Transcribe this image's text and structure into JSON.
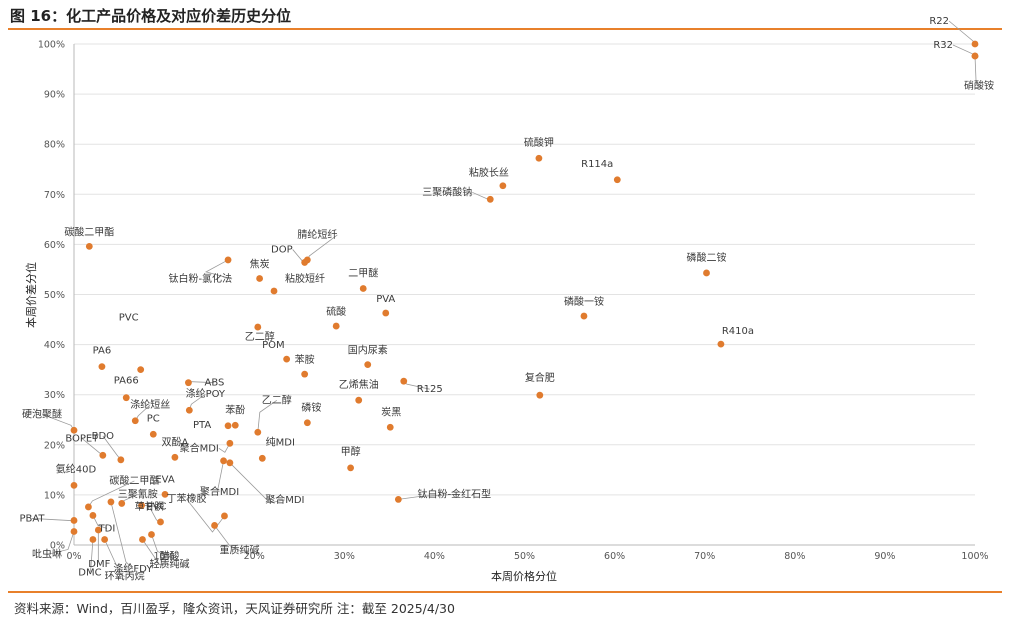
{
  "figure": {
    "title": "图 16：化工产品价格及对应价差历史分位",
    "source": "资料来源：Wind，百川盈孚，隆众资讯，天风证券研究所    注：截至 2025/4/30"
  },
  "colors": {
    "accent": "#e8802b",
    "point": "#e07b2e",
    "grid": "#e3e3e3",
    "axis": "#b9b9b9"
  },
  "chart_data": {
    "type": "scatter",
    "xlabel": "本周价格分位",
    "ylabel": "本周价差分位",
    "xlim": [
      0,
      100
    ],
    "ylim": [
      0,
      100
    ],
    "x_ticks": [
      "0%",
      "10%",
      "20%",
      "30%",
      "40%",
      "50%",
      "60%",
      "70%",
      "80%",
      "90%",
      "100%"
    ],
    "y_ticks": [
      "0%",
      "10%",
      "20%",
      "30%",
      "40%",
      "50%",
      "60%",
      "70%",
      "80%",
      "90%",
      "100%"
    ],
    "grid": "horizontal",
    "points": [
      {
        "label": "R22",
        "x": 100,
        "y": 100
      },
      {
        "label": "R32",
        "x": 100,
        "y": 97.6
      },
      {
        "label": "硝酸铵",
        "x": 100,
        "y": 97.6
      },
      {
        "label": "硫酸钾",
        "x": 51.6,
        "y": 77.2
      },
      {
        "label": "R114a",
        "x": 60.3,
        "y": 72.9
      },
      {
        "label": "粘胶长丝",
        "x": 47.6,
        "y": 71.7
      },
      {
        "label": "三聚磷酸钠",
        "x": 46.2,
        "y": 69.0
      },
      {
        "label": "碳酸二甲酯",
        "x": 1.7,
        "y": 59.6
      },
      {
        "label": "腈纶短纤",
        "x": 25.9,
        "y": 56.9
      },
      {
        "label": "DOP",
        "x": 25.6,
        "y": 56.4
      },
      {
        "label": "钛白粉-氯化法",
        "x": 17.1,
        "y": 56.9
      },
      {
        "label": "磷酸二铵",
        "x": 70.2,
        "y": 54.3
      },
      {
        "label": "焦炭",
        "x": 20.6,
        "y": 53.2
      },
      {
        "label": "粘胶短纤",
        "x": 22.2,
        "y": 50.7
      },
      {
        "label": "二甲醚",
        "x": 32.1,
        "y": 51.2
      },
      {
        "label": "PVA",
        "x": 34.6,
        "y": 46.3
      },
      {
        "label": "磷酸一铵",
        "x": 56.6,
        "y": 45.7
      },
      {
        "label": "硫酸",
        "x": 29.1,
        "y": 43.7
      },
      {
        "label": "乙二醇",
        "x": 20.4,
        "y": 43.5
      },
      {
        "label": "R410a",
        "x": 71.8,
        "y": 40.1
      },
      {
        "label": "POM",
        "x": 23.6,
        "y": 37.1
      },
      {
        "label": "国内尿素",
        "x": 32.6,
        "y": 36.0
      },
      {
        "label": "苯胺",
        "x": 25.6,
        "y": 34.1
      },
      {
        "label": "PVC",
        "x": 7.4,
        "y": 35.0
      },
      {
        "label": "PA6",
        "x": 3.1,
        "y": 35.6
      },
      {
        "label": "ABS",
        "x": 12.7,
        "y": 32.4
      },
      {
        "label": "R125",
        "x": 36.6,
        "y": 32.7
      },
      {
        "label": "乙烯焦油",
        "x": 31.6,
        "y": 28.9
      },
      {
        "label": "复合肥",
        "x": 51.7,
        "y": 29.9
      },
      {
        "label": "PA66",
        "x": 5.8,
        "y": 29.4
      },
      {
        "label": "涤纶POY",
        "x": 12.8,
        "y": 26.9
      },
      {
        "label": "涤纶短丝",
        "x": 6.8,
        "y": 24.8
      },
      {
        "label": "PTA",
        "x": 17.1,
        "y": 23.8
      },
      {
        "label": "苯酚",
        "x": 17.9,
        "y": 23.9
      },
      {
        "label": "磷铵",
        "x": 25.9,
        "y": 24.4
      },
      {
        "label": "炭黑",
        "x": 35.1,
        "y": 23.5
      },
      {
        "label": "硬泡聚醚",
        "x": 0,
        "y": 22.9
      },
      {
        "label": "PC",
        "x": 8.8,
        "y": 22.1
      },
      {
        "label": "乙二醇",
        "x": 20.4,
        "y": 22.5
      },
      {
        "label": "BOPET",
        "x": 3.2,
        "y": 17.9
      },
      {
        "label": "BDO",
        "x": 5.2,
        "y": 17.0
      },
      {
        "label": "双酚A",
        "x": 11.2,
        "y": 17.5
      },
      {
        "label": "聚合MDI",
        "x": 17.3,
        "y": 20.3
      },
      {
        "label": "纯MDI",
        "x": 20.9,
        "y": 17.3
      },
      {
        "label": "聚合MDI",
        "x": 16.6,
        "y": 16.8
      },
      {
        "label": "聚合MDI",
        "x": 17.3,
        "y": 16.4
      },
      {
        "label": "甲醇",
        "x": 30.7,
        "y": 15.4
      },
      {
        "label": "氨纶40D",
        "x": 0,
        "y": 11.9
      },
      {
        "label": "EVA",
        "x": 10.1,
        "y": 10.1
      },
      {
        "label": "钛白粉-金红石型",
        "x": 36.0,
        "y": 9.1
      },
      {
        "label": "碳酸二甲酯",
        "x": 1.6,
        "y": 7.6
      },
      {
        "label": "三聚氰胺",
        "x": 5.3,
        "y": 8.3
      },
      {
        "label": "涤纶FDY",
        "x": 4.1,
        "y": 8.6
      },
      {
        "label": "PVC",
        "x": 7.5,
        "y": 7.9
      },
      {
        "label": "丁苯橡胶",
        "x": 16.7,
        "y": 5.8
      },
      {
        "label": "PBAT",
        "x": 0,
        "y": 4.9
      },
      {
        "label": "TDI",
        "x": 2.1,
        "y": 5.9
      },
      {
        "label": "草甘膦",
        "x": 9.6,
        "y": 4.6
      },
      {
        "label": "重质纯碱",
        "x": 15.6,
        "y": 3.9
      },
      {
        "label": "吡虫啉",
        "x": 0,
        "y": 2.7
      },
      {
        "label": "醋酸",
        "x": 8.6,
        "y": 2.1
      },
      {
        "label": "DMC",
        "x": 2.1,
        "y": 1.1
      },
      {
        "label": "DMF",
        "x": 2.7,
        "y": 3.0
      },
      {
        "label": "环氧丙烷",
        "x": 3.4,
        "y": 1.1
      },
      {
        "label": "轻质纯碱",
        "x": 7.6,
        "y": 1.1
      }
    ]
  }
}
